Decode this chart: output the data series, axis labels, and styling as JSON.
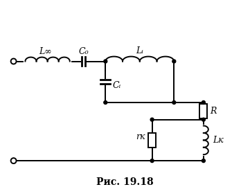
{
  "title": "Рис. 19.18",
  "title_fontsize": 10,
  "background_color": "#ffffff",
  "line_color": "#000000",
  "line_width": 1.4,
  "labels": {
    "L_inf": "L∞",
    "C_0": "C₀",
    "L_i": "Lᵢ",
    "C_i": "Cᵢ",
    "R": "R",
    "r_k": "rк",
    "L_k": "Lк"
  }
}
